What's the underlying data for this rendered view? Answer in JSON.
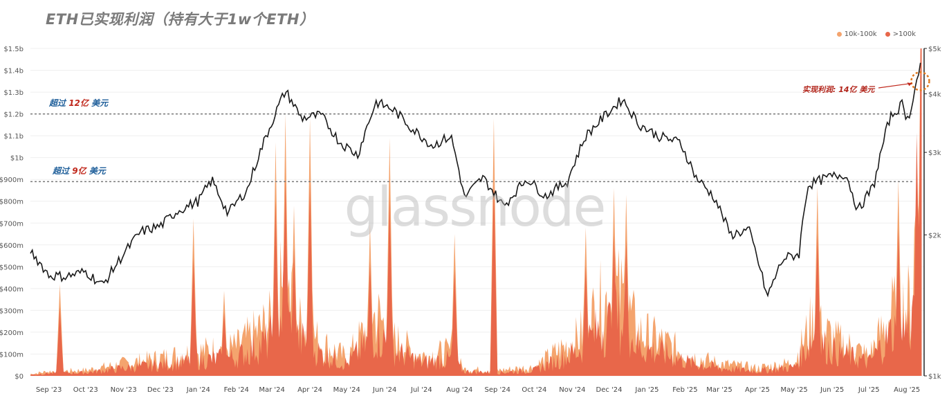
{
  "chart_data": {
    "type": "area",
    "title": "ETH已实现利润（持有大于1w个ETH）",
    "watermark": "glassnode",
    "left_axis": {
      "ticks": [
        "$0",
        "$100m",
        "$200m",
        "$300m",
        "$400m",
        "$500m",
        "$600m",
        "$700m",
        "$800m",
        "$900m",
        "$1b",
        "$1.1b",
        "$1.2b",
        "$1.3b",
        "$1.4b",
        "$1.5b"
      ],
      "ylim": [
        0,
        1500
      ]
    },
    "right_axis": {
      "ticks": [
        "$1k",
        "$2k",
        "$3k",
        "$4k",
        "$5k"
      ],
      "scale": "log",
      "ylim": [
        1000,
        5000
      ]
    },
    "x_ticks": [
      "Sep '23",
      "Oct '23",
      "Nov '23",
      "Dec '23",
      "Jan '24",
      "Feb '24",
      "Mar '24",
      "Apr '24",
      "May '24",
      "Jun '24",
      "Jul '24",
      "Aug '24",
      "Sep '24",
      "Oct '24",
      "Nov '24",
      "Dec '24",
      "Jan '25",
      "Feb '25",
      "Mar '25",
      "Apr '25",
      "May '25",
      "Jun '25",
      "Jul '25",
      "Aug '25"
    ],
    "legend": [
      {
        "label": "10k-100k",
        "color": "#f4a46e"
      },
      {
        "label": ">100k",
        "color": "#e8674a"
      }
    ],
    "price_line_color": "#1a1a1a",
    "price_series": [
      {
        "x": "2023-08-17",
        "y": 1850
      },
      {
        "x": "2023-09-01",
        "y": 1640
      },
      {
        "x": "2023-09-15",
        "y": 1630
      },
      {
        "x": "2023-10-01",
        "y": 1670
      },
      {
        "x": "2023-10-15",
        "y": 1560
      },
      {
        "x": "2023-11-01",
        "y": 1820
      },
      {
        "x": "2023-11-15",
        "y": 2030
      },
      {
        "x": "2023-12-01",
        "y": 2090
      },
      {
        "x": "2023-12-15",
        "y": 2250
      },
      {
        "x": "2024-01-01",
        "y": 2360
      },
      {
        "x": "2024-01-12",
        "y": 2620
      },
      {
        "x": "2024-01-25",
        "y": 2220
      },
      {
        "x": "2024-02-10",
        "y": 2500
      },
      {
        "x": "2024-02-28",
        "y": 3380
      },
      {
        "x": "2024-03-12",
        "y": 4060
      },
      {
        "x": "2024-03-25",
        "y": 3550
      },
      {
        "x": "2024-04-10",
        "y": 3600
      },
      {
        "x": "2024-04-25",
        "y": 3160
      },
      {
        "x": "2024-05-10",
        "y": 2960
      },
      {
        "x": "2024-05-25",
        "y": 3840
      },
      {
        "x": "2024-06-08",
        "y": 3700
      },
      {
        "x": "2024-06-24",
        "y": 3360
      },
      {
        "x": "2024-07-10",
        "y": 3100
      },
      {
        "x": "2024-07-25",
        "y": 3250
      },
      {
        "x": "2024-08-05",
        "y": 2400
      },
      {
        "x": "2024-08-20",
        "y": 2650
      },
      {
        "x": "2024-09-06",
        "y": 2300
      },
      {
        "x": "2024-09-25",
        "y": 2640
      },
      {
        "x": "2024-10-10",
        "y": 2420
      },
      {
        "x": "2024-10-28",
        "y": 2600
      },
      {
        "x": "2024-11-12",
        "y": 3250
      },
      {
        "x": "2024-11-28",
        "y": 3600
      },
      {
        "x": "2024-12-12",
        "y": 3900
      },
      {
        "x": "2024-12-25",
        "y": 3450
      },
      {
        "x": "2025-01-10",
        "y": 3250
      },
      {
        "x": "2025-01-28",
        "y": 3150
      },
      {
        "x": "2025-02-10",
        "y": 2650
      },
      {
        "x": "2025-02-25",
        "y": 2400
      },
      {
        "x": "2025-03-10",
        "y": 2000
      },
      {
        "x": "2025-03-25",
        "y": 2050
      },
      {
        "x": "2025-04-09",
        "y": 1470
      },
      {
        "x": "2025-04-22",
        "y": 1780
      },
      {
        "x": "2025-05-05",
        "y": 1820
      },
      {
        "x": "2025-05-12",
        "y": 2550
      },
      {
        "x": "2025-05-28",
        "y": 2650
      },
      {
        "x": "2025-06-12",
        "y": 2700
      },
      {
        "x": "2025-06-22",
        "y": 2250
      },
      {
        "x": "2025-07-05",
        "y": 2550
      },
      {
        "x": "2025-07-18",
        "y": 3550
      },
      {
        "x": "2025-07-28",
        "y": 3800
      },
      {
        "x": "2025-08-02",
        "y": 3500
      },
      {
        "x": "2025-08-13",
        "y": 4700
      }
    ],
    "profit_10k_100k_series": [
      {
        "x": "2023-08-17",
        "y": 8
      },
      {
        "x": "2023-09-01",
        "y": 20
      },
      {
        "x": "2023-10-01",
        "y": 25
      },
      {
        "x": "2023-11-01",
        "y": 55
      },
      {
        "x": "2023-12-01",
        "y": 80
      },
      {
        "x": "2024-01-01",
        "y": 110
      },
      {
        "x": "2024-02-01",
        "y": 130
      },
      {
        "x": "2024-02-28",
        "y": 240
      },
      {
        "x": "2024-03-10",
        "y": 420
      },
      {
        "x": "2024-03-20",
        "y": 260
      },
      {
        "x": "2024-04-10",
        "y": 150
      },
      {
        "x": "2024-05-01",
        "y": 80
      },
      {
        "x": "2024-05-25",
        "y": 280
      },
      {
        "x": "2024-06-10",
        "y": 160
      },
      {
        "x": "2024-07-01",
        "y": 90
      },
      {
        "x": "2024-07-25",
        "y": 110
      },
      {
        "x": "2024-08-05",
        "y": 30
      },
      {
        "x": "2024-09-01",
        "y": 25
      },
      {
        "x": "2024-10-01",
        "y": 40
      },
      {
        "x": "2024-11-05",
        "y": 170
      },
      {
        "x": "2024-11-25",
        "y": 330
      },
      {
        "x": "2024-12-10",
        "y": 370
      },
      {
        "x": "2024-12-25",
        "y": 200
      },
      {
        "x": "2025-01-15",
        "y": 150
      },
      {
        "x": "2025-02-05",
        "y": 90
      },
      {
        "x": "2025-03-01",
        "y": 55
      },
      {
        "x": "2025-04-01",
        "y": 35
      },
      {
        "x": "2025-05-01",
        "y": 60
      },
      {
        "x": "2025-05-15",
        "y": 240
      },
      {
        "x": "2025-06-05",
        "y": 160
      },
      {
        "x": "2025-07-01",
        "y": 90
      },
      {
        "x": "2025-07-20",
        "y": 290
      },
      {
        "x": "2025-08-05",
        "y": 330
      },
      {
        "x": "2025-08-13",
        "y": 1320
      }
    ],
    "profit_gt100k_series": [
      {
        "x": "2023-08-17",
        "y": 5
      },
      {
        "x": "2023-09-01",
        "y": 12
      },
      {
        "x": "2023-10-01",
        "y": 15
      },
      {
        "x": "2023-11-01",
        "y": 35
      },
      {
        "x": "2023-12-01",
        "y": 50
      },
      {
        "x": "2024-01-01",
        "y": 70
      },
      {
        "x": "2024-02-01",
        "y": 85
      },
      {
        "x": "2024-02-28",
        "y": 160
      },
      {
        "x": "2024-03-10",
        "y": 300
      },
      {
        "x": "2024-03-20",
        "y": 180
      },
      {
        "x": "2024-04-10",
        "y": 100
      },
      {
        "x": "2024-05-01",
        "y": 55
      },
      {
        "x": "2024-05-25",
        "y": 190
      },
      {
        "x": "2024-06-10",
        "y": 110
      },
      {
        "x": "2024-07-01",
        "y": 60
      },
      {
        "x": "2024-07-25",
        "y": 75
      },
      {
        "x": "2024-08-05",
        "y": 20
      },
      {
        "x": "2024-09-01",
        "y": 15
      },
      {
        "x": "2024-10-01",
        "y": 25
      },
      {
        "x": "2024-11-05",
        "y": 110
      },
      {
        "x": "2024-11-25",
        "y": 220
      },
      {
        "x": "2024-12-10",
        "y": 250
      },
      {
        "x": "2024-12-25",
        "y": 130
      },
      {
        "x": "2025-01-15",
        "y": 100
      },
      {
        "x": "2025-02-05",
        "y": 60
      },
      {
        "x": "2025-03-01",
        "y": 35
      },
      {
        "x": "2025-04-01",
        "y": 22
      },
      {
        "x": "2025-05-01",
        "y": 40
      },
      {
        "x": "2025-05-15",
        "y": 170
      },
      {
        "x": "2025-06-05",
        "y": 105
      },
      {
        "x": "2025-07-01",
        "y": 60
      },
      {
        "x": "2025-07-20",
        "y": 200
      },
      {
        "x": "2025-08-05",
        "y": 230
      },
      {
        "x": "2025-08-13",
        "y": 1150
      }
    ],
    "profit_spikes": [
      {
        "x": "2023-09-10",
        "y": 420
      },
      {
        "x": "2023-12-28",
        "y": 720
      },
      {
        "x": "2024-01-22",
        "y": 390
      },
      {
        "x": "2024-03-04",
        "y": 1070
      },
      {
        "x": "2024-03-12",
        "y": 1200
      },
      {
        "x": "2024-03-19",
        "y": 780
      },
      {
        "x": "2024-04-01",
        "y": 1180
      },
      {
        "x": "2024-05-20",
        "y": 700
      },
      {
        "x": "2024-06-05",
        "y": 1090
      },
      {
        "x": "2024-07-28",
        "y": 650
      },
      {
        "x": "2024-08-29",
        "y": 1180
      },
      {
        "x": "2024-11-12",
        "y": 680
      },
      {
        "x": "2024-12-05",
        "y": 860
      },
      {
        "x": "2024-12-15",
        "y": 830
      },
      {
        "x": "2025-05-20",
        "y": 870
      },
      {
        "x": "2025-07-25",
        "y": 900
      },
      {
        "x": "2025-08-12",
        "y": 1360
      }
    ],
    "reference_lines": [
      {
        "y": 1200,
        "label_prefix": "超过",
        "label_value": "12亿",
        "label_suffix": "美元"
      },
      {
        "y": 890,
        "label_prefix": "超过",
        "label_value": "9亿",
        "label_suffix": "美元"
      }
    ],
    "annotation": {
      "text": "实现利润: 14亿 美元",
      "x": "2025-08-13",
      "y": 1350
    }
  }
}
